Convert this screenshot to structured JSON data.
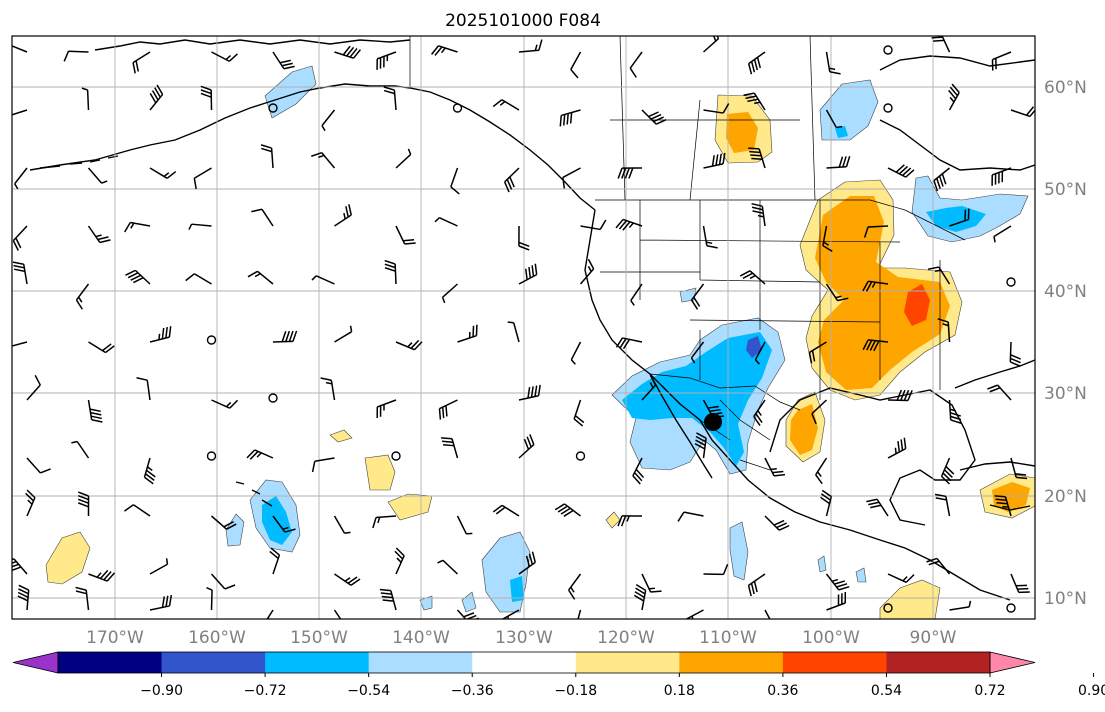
{
  "title": "2025101000 F084",
  "map": {
    "longitude_ticks": [
      "170°W",
      "160°W",
      "150°W",
      "140°W",
      "130°W",
      "120°W",
      "110°W",
      "100°W",
      "90°W"
    ],
    "latitude_ticks": [
      "10°N",
      "20°N",
      "30°N",
      "40°N",
      "50°N",
      "60°N"
    ],
    "extent": {
      "lon": [
        -180,
        -80
      ],
      "lat": [
        8,
        66
      ]
    },
    "gridlines": true,
    "wind_barbs": true,
    "marker": {
      "lon": -111.5,
      "lat": 27.2,
      "shape": "filled-circle"
    }
  },
  "colorbar": {
    "orientation": "horizontal",
    "extend": "both",
    "tick_labels": [
      "−0.90",
      "−0.72",
      "−0.54",
      "−0.36",
      "−0.18",
      "0.18",
      "0.36",
      "0.54",
      "0.72",
      "0.90"
    ],
    "colors": [
      "#9933cc",
      "#000080",
      "#3355cc",
      "#00bbff",
      "#aaddff",
      "#ffffff",
      "#ffe98a",
      "#ffa500",
      "#ff4400",
      "#b22222",
      "#ff88aa"
    ]
  }
}
